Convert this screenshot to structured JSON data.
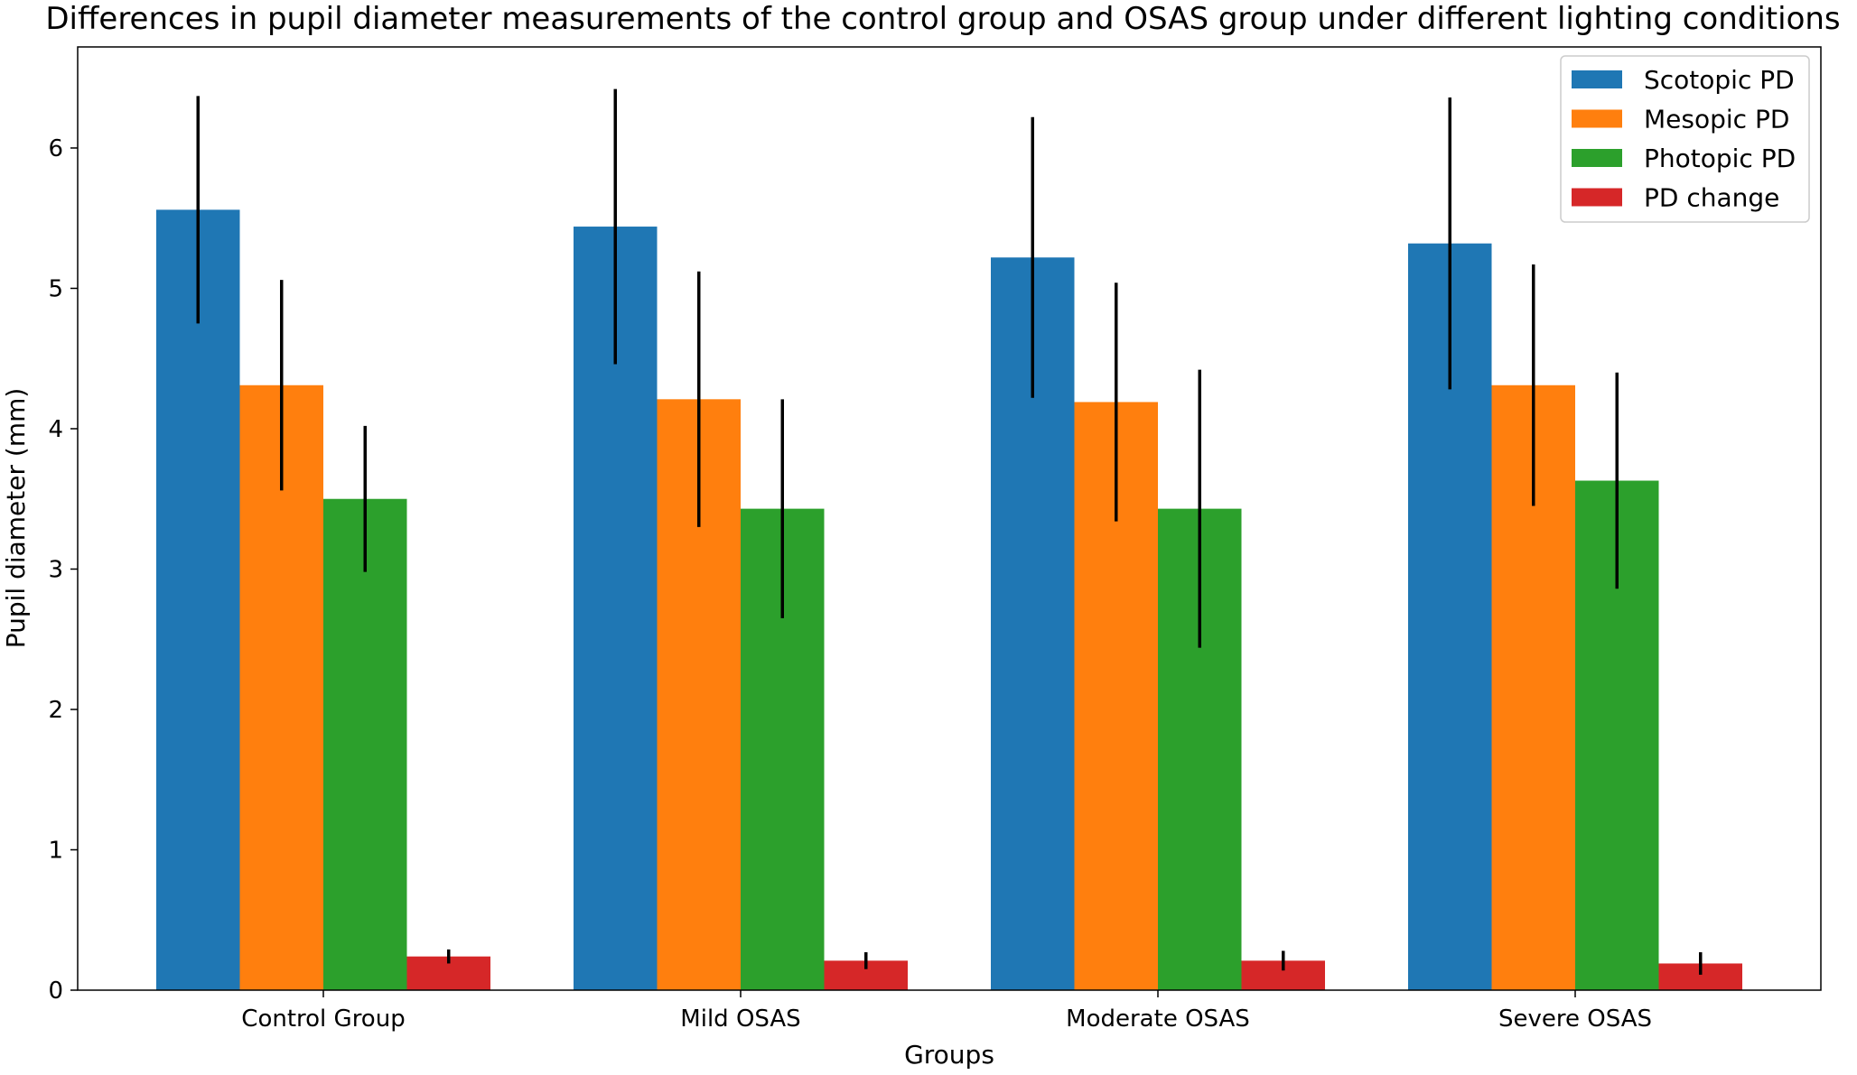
{
  "chart_data": {
    "type": "bar",
    "title": "Differences in pupil diameter measurements of the control group and OSAS group under different lighting conditions",
    "xlabel": "Groups",
    "ylabel": "Pupil diameter (mm)",
    "ylim": [
      0,
      6.72
    ],
    "yticks": [
      "0",
      "1",
      "2",
      "3",
      "4",
      "5",
      "6"
    ],
    "grid": false,
    "legend_position": "top-right",
    "categories": [
      "Control Group",
      "Mild OSAS",
      "Moderate OSAS",
      "Severe OSAS"
    ],
    "series": [
      {
        "name": "Scotopic PD",
        "color": "#1f77b4",
        "values": [
          5.56,
          5.44,
          5.22,
          5.32
        ],
        "errors": [
          0.81,
          0.98,
          1.0,
          1.04
        ]
      },
      {
        "name": "Mesopic PD",
        "color": "#ff7f0e",
        "values": [
          4.31,
          4.21,
          4.19,
          4.31
        ],
        "errors": [
          0.75,
          0.91,
          0.85,
          0.86
        ]
      },
      {
        "name": "Photopic PD",
        "color": "#2ca02c",
        "values": [
          3.5,
          3.43,
          3.43,
          3.63
        ],
        "errors": [
          0.52,
          0.78,
          0.99,
          0.77
        ]
      },
      {
        "name": "PD change",
        "color": "#d62728",
        "values": [
          0.24,
          0.21,
          0.21,
          0.19
        ],
        "errors": [
          0.05,
          0.06,
          0.07,
          0.08
        ]
      }
    ]
  }
}
